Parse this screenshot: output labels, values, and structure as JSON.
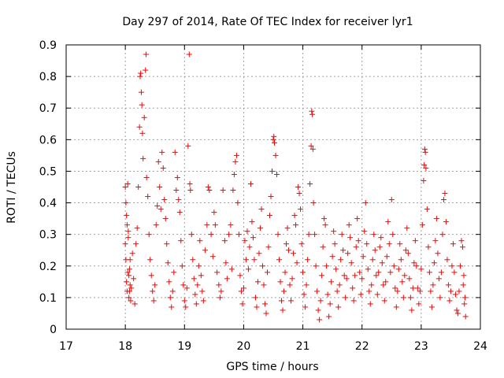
{
  "chart_data": {
    "type": "scatter",
    "title": "Day 297 of 2014, Rate Of TEC Index for receiver lyr1",
    "xlabel": "GPS time / hours",
    "ylabel": "ROTI / TECUs",
    "xlim": [
      17,
      24
    ],
    "ylim": [
      0,
      0.9
    ],
    "xticks": [
      17,
      18,
      19,
      20,
      21,
      22,
      23,
      24
    ],
    "xtick_labels": [
      "17",
      "18",
      "19",
      "20",
      "21",
      "22",
      "23",
      "24"
    ],
    "yticks": [
      0,
      0.1,
      0.2,
      0.3,
      0.4,
      0.5,
      0.6,
      0.7,
      0.8,
      0.9
    ],
    "ytick_labels": [
      "0",
      "0.1",
      "0.2",
      "0.3",
      "0.4",
      "0.5",
      "0.6",
      "0.7",
      "0.8",
      "0.9"
    ],
    "grid": true,
    "marker": "plus",
    "marker_color": "#ff0000",
    "series": [
      {
        "name": "ROTI",
        "points": [
          [
            18.0,
            0.27
          ],
          [
            18.01,
            0.22
          ],
          [
            18.02,
            0.15
          ],
          [
            18.03,
            0.12
          ],
          [
            18.04,
            0.18
          ],
          [
            18.05,
            0.31
          ],
          [
            18.06,
            0.1
          ],
          [
            18.07,
            0.19
          ],
          [
            18.08,
            0.14
          ],
          [
            18.09,
            0.09
          ],
          [
            18.0,
            0.45
          ],
          [
            18.01,
            0.4
          ],
          [
            18.02,
            0.36
          ],
          [
            18.03,
            0.33
          ],
          [
            18.04,
            0.46
          ],
          [
            18.05,
            0.29
          ],
          [
            18.06,
            0.17
          ],
          [
            18.07,
            0.12
          ],
          [
            18.08,
            0.22
          ],
          [
            18.1,
            0.13
          ],
          [
            18.12,
            0.24
          ],
          [
            18.14,
            0.16
          ],
          [
            18.16,
            0.08
          ],
          [
            18.18,
            0.27
          ],
          [
            18.2,
            0.32
          ],
          [
            18.22,
            0.45
          ],
          [
            18.24,
            0.64
          ],
          [
            18.25,
            0.8
          ],
          [
            18.26,
            0.81
          ],
          [
            18.27,
            0.75
          ],
          [
            18.28,
            0.71
          ],
          [
            18.29,
            0.62
          ],
          [
            18.3,
            0.54
          ],
          [
            18.32,
            0.67
          ],
          [
            18.34,
            0.82
          ],
          [
            18.35,
            0.87
          ],
          [
            18.36,
            0.48
          ],
          [
            18.38,
            0.42
          ],
          [
            18.4,
            0.3
          ],
          [
            18.42,
            0.22
          ],
          [
            18.44,
            0.17
          ],
          [
            18.46,
            0.12
          ],
          [
            18.48,
            0.09
          ],
          [
            18.5,
            0.14
          ],
          [
            18.52,
            0.33
          ],
          [
            18.54,
            0.39
          ],
          [
            18.56,
            0.53
          ],
          [
            18.58,
            0.45
          ],
          [
            18.6,
            0.38
          ],
          [
            18.62,
            0.56
          ],
          [
            18.64,
            0.51
          ],
          [
            18.66,
            0.41
          ],
          [
            18.68,
            0.35
          ],
          [
            18.7,
            0.27
          ],
          [
            18.72,
            0.21
          ],
          [
            18.74,
            0.15
          ],
          [
            18.76,
            0.1
          ],
          [
            18.78,
            0.07
          ],
          [
            18.8,
            0.12
          ],
          [
            18.82,
            0.18
          ],
          [
            18.84,
            0.56
          ],
          [
            18.86,
            0.44
          ],
          [
            18.88,
            0.48
          ],
          [
            18.9,
            0.41
          ],
          [
            18.92,
            0.37
          ],
          [
            18.94,
            0.28
          ],
          [
            18.96,
            0.2
          ],
          [
            18.98,
            0.14
          ],
          [
            19.0,
            0.09
          ],
          [
            19.02,
            0.07
          ],
          [
            19.04,
            0.13
          ],
          [
            19.06,
            0.58
          ],
          [
            19.08,
            0.87
          ],
          [
            19.09,
            0.46
          ],
          [
            19.1,
            0.44
          ],
          [
            19.12,
            0.3
          ],
          [
            19.14,
            0.22
          ],
          [
            19.16,
            0.16
          ],
          [
            19.18,
            0.11
          ],
          [
            19.2,
            0.08
          ],
          [
            19.22,
            0.14
          ],
          [
            19.24,
            0.2
          ],
          [
            19.26,
            0.28
          ],
          [
            19.28,
            0.17
          ],
          [
            19.3,
            0.12
          ],
          [
            19.32,
            0.09
          ],
          [
            19.35,
            0.25
          ],
          [
            19.38,
            0.33
          ],
          [
            19.4,
            0.45
          ],
          [
            19.42,
            0.44
          ],
          [
            19.45,
            0.3
          ],
          [
            19.48,
            0.23
          ],
          [
            19.5,
            0.37
          ],
          [
            19.52,
            0.33
          ],
          [
            19.55,
            0.18
          ],
          [
            19.58,
            0.14
          ],
          [
            19.6,
            0.1
          ],
          [
            19.62,
            0.12
          ],
          [
            19.65,
            0.44
          ],
          [
            19.68,
            0.28
          ],
          [
            19.7,
            0.21
          ],
          [
            19.72,
            0.16
          ],
          [
            19.75,
            0.3
          ],
          [
            19.78,
            0.33
          ],
          [
            19.8,
            0.19
          ],
          [
            19.82,
            0.44
          ],
          [
            19.84,
            0.49
          ],
          [
            19.86,
            0.53
          ],
          [
            19.88,
            0.55
          ],
          [
            19.9,
            0.4
          ],
          [
            19.92,
            0.3
          ],
          [
            19.94,
            0.17
          ],
          [
            19.96,
            0.12
          ],
          [
            19.98,
            0.08
          ],
          [
            20.0,
            0.13
          ],
          [
            20.02,
            0.28
          ],
          [
            20.04,
            0.22
          ],
          [
            20.06,
            0.31
          ],
          [
            20.08,
            0.19
          ],
          [
            20.1,
            0.26
          ],
          [
            20.12,
            0.46
          ],
          [
            20.14,
            0.34
          ],
          [
            20.16,
            0.29
          ],
          [
            20.18,
            0.22
          ],
          [
            20.2,
            0.1
          ],
          [
            20.22,
            0.07
          ],
          [
            20.24,
            0.15
          ],
          [
            20.26,
            0.24
          ],
          [
            20.28,
            0.32
          ],
          [
            20.3,
            0.38
          ],
          [
            20.32,
            0.2
          ],
          [
            20.34,
            0.14
          ],
          [
            20.36,
            0.08
          ],
          [
            20.38,
            0.05
          ],
          [
            20.4,
            0.18
          ],
          [
            20.42,
            0.26
          ],
          [
            20.44,
            0.36
          ],
          [
            20.46,
            0.42
          ],
          [
            20.48,
            0.5
          ],
          [
            20.5,
            0.6
          ],
          [
            20.51,
            0.61
          ],
          [
            20.52,
            0.59
          ],
          [
            20.54,
            0.55
          ],
          [
            20.56,
            0.49
          ],
          [
            20.58,
            0.3
          ],
          [
            20.6,
            0.22
          ],
          [
            20.62,
            0.15
          ],
          [
            20.64,
            0.09
          ],
          [
            20.66,
            0.06
          ],
          [
            20.68,
            0.12
          ],
          [
            20.7,
            0.18
          ],
          [
            20.72,
            0.27
          ],
          [
            20.74,
            0.32
          ],
          [
            20.76,
            0.25
          ],
          [
            20.78,
            0.14
          ],
          [
            20.8,
            0.09
          ],
          [
            20.82,
            0.16
          ],
          [
            20.84,
            0.24
          ],
          [
            20.86,
            0.36
          ],
          [
            20.88,
            0.33
          ],
          [
            20.9,
            0.21
          ],
          [
            20.92,
            0.45
          ],
          [
            20.94,
            0.43
          ],
          [
            20.96,
            0.38
          ],
          [
            20.98,
            0.27
          ],
          [
            21.0,
            0.18
          ],
          [
            21.02,
            0.11
          ],
          [
            21.04,
            0.07
          ],
          [
            21.06,
            0.14
          ],
          [
            21.08,
            0.22
          ],
          [
            21.1,
            0.3
          ],
          [
            21.12,
            0.46
          ],
          [
            21.14,
            0.58
          ],
          [
            21.15,
            0.69
          ],
          [
            21.16,
            0.68
          ],
          [
            21.17,
            0.57
          ],
          [
            21.18,
            0.4
          ],
          [
            21.2,
            0.3
          ],
          [
            21.22,
            0.2
          ],
          [
            21.24,
            0.12
          ],
          [
            21.26,
            0.06
          ],
          [
            21.28,
            0.03
          ],
          [
            21.3,
            0.09
          ],
          [
            21.32,
            0.17
          ],
          [
            21.34,
            0.26
          ],
          [
            21.36,
            0.35
          ],
          [
            21.38,
            0.33
          ],
          [
            21.4,
            0.2
          ],
          [
            21.42,
            0.11
          ],
          [
            21.44,
            0.04
          ],
          [
            21.46,
            0.08
          ],
          [
            21.48,
            0.15
          ],
          [
            21.5,
            0.23
          ],
          [
            21.52,
            0.31
          ],
          [
            21.54,
            0.27
          ],
          [
            21.56,
            0.19
          ],
          [
            21.58,
            0.12
          ],
          [
            21.6,
            0.07
          ],
          [
            21.62,
            0.14
          ],
          [
            21.64,
            0.22
          ],
          [
            21.66,
            0.3
          ],
          [
            21.68,
            0.25
          ],
          [
            21.7,
            0.17
          ],
          [
            21.72,
            0.1
          ],
          [
            21.74,
            0.16
          ],
          [
            21.76,
            0.24
          ],
          [
            21.78,
            0.33
          ],
          [
            21.8,
            0.29
          ],
          [
            21.82,
            0.21
          ],
          [
            21.84,
            0.13
          ],
          [
            21.86,
            0.09
          ],
          [
            21.88,
            0.17
          ],
          [
            21.9,
            0.26
          ],
          [
            21.92,
            0.35
          ],
          [
            21.94,
            0.28
          ],
          [
            21.96,
            0.18
          ],
          [
            21.98,
            0.11
          ],
          [
            22.0,
            0.16
          ],
          [
            22.02,
            0.23
          ],
          [
            22.04,
            0.31
          ],
          [
            22.06,
            0.4
          ],
          [
            22.08,
            0.27
          ],
          [
            22.1,
            0.19
          ],
          [
            22.12,
            0.12
          ],
          [
            22.14,
            0.08
          ],
          [
            22.16,
            0.14
          ],
          [
            22.18,
            0.22
          ],
          [
            22.2,
            0.3
          ],
          [
            22.22,
            0.25
          ],
          [
            22.24,
            0.17
          ],
          [
            22.26,
            0.11
          ],
          [
            22.28,
            0.18
          ],
          [
            22.3,
            0.26
          ],
          [
            22.32,
            0.29
          ],
          [
            22.34,
            0.21
          ],
          [
            22.36,
            0.14
          ],
          [
            22.38,
            0.09
          ],
          [
            22.4,
            0.15
          ],
          [
            22.42,
            0.23
          ],
          [
            22.44,
            0.34
          ],
          [
            22.46,
            0.27
          ],
          [
            22.48,
            0.18
          ],
          [
            22.5,
            0.41
          ],
          [
            22.52,
            0.3
          ],
          [
            22.54,
            0.2
          ],
          [
            22.56,
            0.13
          ],
          [
            22.58,
            0.07
          ],
          [
            22.6,
            0.12
          ],
          [
            22.62,
            0.19
          ],
          [
            22.64,
            0.27
          ],
          [
            22.66,
            0.22
          ],
          [
            22.68,
            0.15
          ],
          [
            22.7,
            0.1
          ],
          [
            22.72,
            0.17
          ],
          [
            22.74,
            0.25
          ],
          [
            22.76,
            0.32
          ],
          [
            22.78,
            0.24
          ],
          [
            22.8,
            0.16
          ],
          [
            22.82,
            0.1
          ],
          [
            22.84,
            0.06
          ],
          [
            22.86,
            0.13
          ],
          [
            22.88,
            0.21
          ],
          [
            22.9,
            0.28
          ],
          [
            22.92,
            0.2
          ],
          [
            22.94,
            0.13
          ],
          [
            22.96,
            0.08
          ],
          [
            22.98,
            0.12
          ],
          [
            23.0,
            0.19
          ],
          [
            23.02,
            0.33
          ],
          [
            23.04,
            0.47
          ],
          [
            23.05,
            0.52
          ],
          [
            23.06,
            0.57
          ],
          [
            23.07,
            0.56
          ],
          [
            23.08,
            0.51
          ],
          [
            23.1,
            0.38
          ],
          [
            23.12,
            0.26
          ],
          [
            23.14,
            0.18
          ],
          [
            23.16,
            0.12
          ],
          [
            23.18,
            0.07
          ],
          [
            23.2,
            0.14
          ],
          [
            23.22,
            0.21
          ],
          [
            23.24,
            0.28
          ],
          [
            23.26,
            0.35
          ],
          [
            23.28,
            0.24
          ],
          [
            23.3,
            0.16
          ],
          [
            23.32,
            0.1
          ],
          [
            23.34,
            0.18
          ],
          [
            23.36,
            0.3
          ],
          [
            23.38,
            0.41
          ],
          [
            23.4,
            0.43
          ],
          [
            23.42,
            0.34
          ],
          [
            23.44,
            0.22
          ],
          [
            23.46,
            0.14
          ],
          [
            23.48,
            0.09
          ],
          [
            23.5,
            0.12
          ],
          [
            23.52,
            0.2
          ],
          [
            23.54,
            0.27
          ],
          [
            23.56,
            0.18
          ],
          [
            23.58,
            0.11
          ],
          [
            23.6,
            0.06
          ],
          [
            23.62,
            0.05
          ],
          [
            23.64,
            0.12
          ],
          [
            23.66,
            0.2
          ],
          [
            23.68,
            0.28
          ],
          [
            23.7,
            0.26
          ],
          [
            23.72,
            0.17
          ],
          [
            23.74,
            0.1
          ],
          [
            23.75,
            0.04
          ],
          [
            23.73,
            0.08
          ],
          [
            23.71,
            0.14
          ]
        ]
      }
    ]
  }
}
